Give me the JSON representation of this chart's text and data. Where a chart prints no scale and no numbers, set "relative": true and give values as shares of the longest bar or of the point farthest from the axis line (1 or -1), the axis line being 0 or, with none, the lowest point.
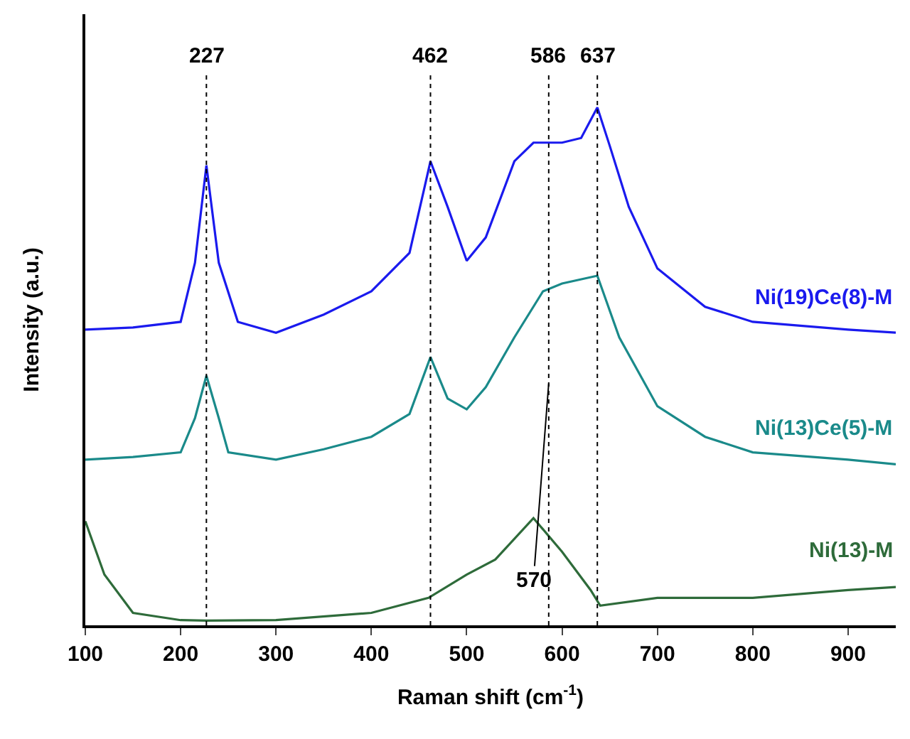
{
  "chart_data": {
    "type": "line",
    "relative": true,
    "xlabel": "Raman shift (cm$^{-1}$)",
    "ylabel": "Intensity (a.u.)",
    "xlim": [
      100,
      950
    ],
    "xticks": [
      100,
      200,
      300,
      400,
      500,
      600,
      700,
      800,
      900
    ],
    "tick_labels": "x",
    "grid": false,
    "legend": false,
    "line_style": "solid",
    "marker": "none",
    "series": [
      {
        "name": "Ni(19)Ce(8)-M",
        "color": "#1a1aee",
        "x": [
          100,
          150,
          200,
          215,
          227,
          240,
          260,
          300,
          350,
          400,
          440,
          462,
          480,
          500,
          520,
          550,
          570,
          600,
          620,
          637,
          650,
          670,
          700,
          750,
          800,
          900,
          950
        ],
        "values": [
          0.571,
          0.575,
          0.586,
          0.7,
          0.888,
          0.7,
          0.586,
          0.565,
          0.6,
          0.645,
          0.719,
          0.896,
          0.808,
          0.704,
          0.749,
          0.896,
          0.932,
          0.932,
          0.941,
          1,
          0.926,
          0.808,
          0.689,
          0.615,
          0.586,
          0.571,
          0.565
        ]
      },
      {
        "name": "Ni(13)Ce(5)-M",
        "color": "#1a8a8a",
        "x": [
          100,
          150,
          200,
          215,
          227,
          240,
          250,
          300,
          350,
          400,
          440,
          462,
          480,
          500,
          520,
          550,
          580,
          600,
          637,
          660,
          700,
          750,
          800,
          900,
          950
        ],
        "values": [
          0.32,
          0.325,
          0.334,
          0.4,
          0.482,
          0.4,
          0.334,
          0.32,
          0.34,
          0.364,
          0.408,
          0.518,
          0.438,
          0.417,
          0.46,
          0.556,
          0.645,
          0.66,
          0.675,
          0.556,
          0.423,
          0.364,
          0.334,
          0.32,
          0.311
        ]
      },
      {
        "name": "Ni(13)-M",
        "color": "#2e6b3a",
        "x": [
          100,
          120,
          150,
          200,
          227,
          300,
          400,
          460,
          500,
          530,
          570,
          600,
          630,
          640,
          700,
          800,
          900,
          950
        ],
        "values": [
          0.201,
          0.098,
          0.024,
          0.01,
          0.009,
          0.01,
          0.024,
          0.053,
          0.098,
          0.127,
          0.207,
          0.142,
          0.068,
          0.038,
          0.053,
          0.053,
          0.068,
          0.074
        ]
      }
    ],
    "ref_lines": [
      {
        "axis": "x",
        "value": 227,
        "label": "227",
        "line_style": "dotted"
      },
      {
        "axis": "x",
        "value": 462,
        "label": "462",
        "line_style": "dotted"
      },
      {
        "axis": "x",
        "value": 586,
        "label": "586",
        "line_style": "dotted"
      },
      {
        "axis": "x",
        "value": 637,
        "label": "637",
        "line_style": "dotted"
      }
    ],
    "annotations": [
      {
        "text": "570",
        "x": 570,
        "y": 0.207
      }
    ]
  }
}
